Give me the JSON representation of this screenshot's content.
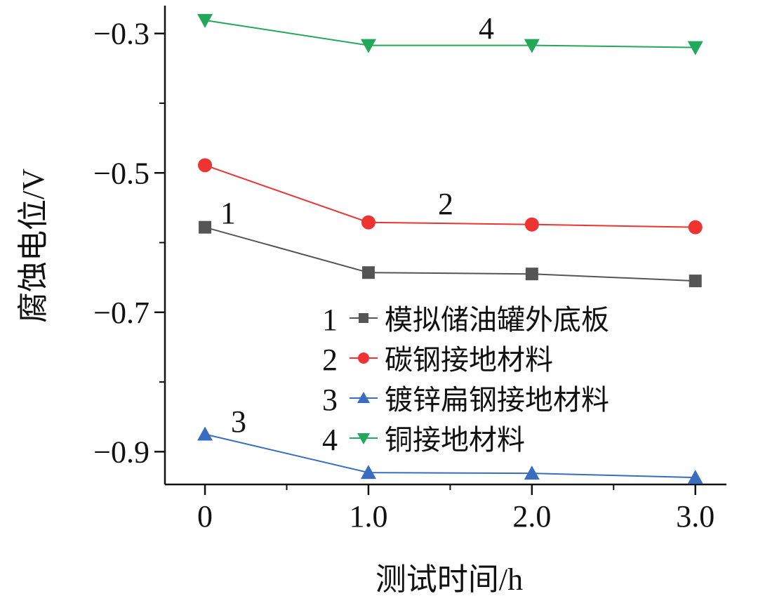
{
  "chart_data": {
    "type": "line",
    "title": "",
    "xlabel": "测试时间/h",
    "ylabel": "腐蚀电位/V",
    "x": [
      0,
      1.0,
      2.0,
      3.0
    ],
    "xticks": [
      "0",
      "1.0",
      "2.0",
      "3.0"
    ],
    "xtick_values": [
      0,
      1,
      2,
      3
    ],
    "yticks": [
      "−0.3",
      "−0.5",
      "−0.7",
      "−0.9"
    ],
    "ytick_values": [
      -0.3,
      -0.5,
      -0.7,
      -0.9
    ],
    "xlim": [
      -0.245,
      3.19
    ],
    "ylim": [
      -0.947,
      -0.26
    ],
    "grid": false,
    "legend_position": "center-right",
    "series": [
      {
        "id": "1",
        "name": "模拟储油罐外底板",
        "color": "#555555",
        "marker": "square",
        "values": [
          -0.578,
          -0.643,
          -0.645,
          -0.655
        ],
        "annotation": "1"
      },
      {
        "id": "2",
        "name": "碳钢接地材料",
        "color": "#ee3333",
        "marker": "circle",
        "values": [
          -0.489,
          -0.571,
          -0.574,
          -0.578
        ],
        "annotation": "2"
      },
      {
        "id": "3",
        "name": "镀锌扁钢接地材料",
        "color": "#3a6cc0",
        "marker": "triangle-up",
        "values": [
          -0.875,
          -0.93,
          -0.931,
          -0.937
        ],
        "annotation": "3"
      },
      {
        "id": "4",
        "name": "铜接地材料",
        "color": "#22a85a",
        "marker": "triangle-down",
        "values": [
          -0.281,
          -0.317,
          -0.317,
          -0.32
        ],
        "annotation": "4"
      }
    ]
  }
}
